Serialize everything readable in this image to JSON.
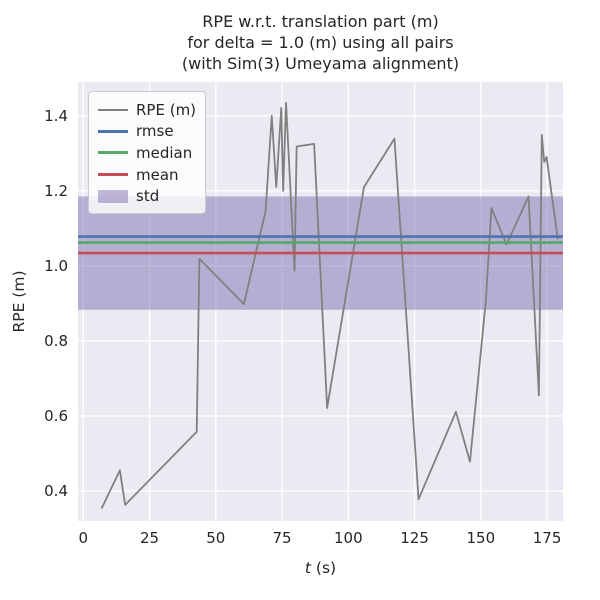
{
  "title": {
    "line1": "RPE w.r.t. translation part (m)",
    "line2": "for delta = 1.0 (m) using all pairs",
    "line3": "(with Sim(3) Umeyama alignment)"
  },
  "axes": {
    "xlabel_italic": "t",
    "xlabel_rest": " (s)",
    "ylabel": "RPE (m)"
  },
  "legend": {
    "items": [
      {
        "label": "RPE (m)",
        "kind": "line",
        "color": "#808080",
        "weight": 2.2
      },
      {
        "label": "rmse",
        "kind": "line",
        "color": "#4C72B0",
        "weight": 3
      },
      {
        "label": "median",
        "kind": "line",
        "color": "#55A868",
        "weight": 3
      },
      {
        "label": "mean",
        "kind": "line",
        "color": "#C44E52",
        "weight": 3
      },
      {
        "label": "std",
        "kind": "patch",
        "color": "rgba(129,114,178,0.5)"
      }
    ]
  },
  "colors": {
    "axes_background": "#EAEAF2",
    "grid": "#FFFFFF",
    "rpe_line": "#808080",
    "rmse_line": "#4C72B0",
    "median_line": "#55A868",
    "mean_line": "#C44E52",
    "std_band": "#8172B2",
    "text": "#262626"
  },
  "chart_data": {
    "type": "line",
    "title": "RPE w.r.t. translation part (m) for delta = 1.0 (m) using all pairs (with Sim(3) Umeyama alignment)",
    "xlabel": "t (s)",
    "ylabel": "RPE (m)",
    "xlim": [
      -2.0,
      181.0
    ],
    "ylim": [
      0.32,
      1.49
    ],
    "xticks": [
      0,
      25,
      50,
      75,
      100,
      125,
      150,
      175
    ],
    "yticks": [
      0.4,
      0.6,
      0.8,
      1.0,
      1.2,
      1.4
    ],
    "grid": true,
    "legend_position": "upper left",
    "series": [
      {
        "name": "RPE (m)",
        "kind": "line",
        "color": "#808080",
        "points": [
          [
            7.0,
            0.355
          ],
          [
            13.8,
            0.455
          ],
          [
            15.8,
            0.363
          ],
          [
            42.8,
            0.558
          ],
          [
            43.8,
            1.019
          ],
          [
            60.6,
            0.898
          ],
          [
            68.8,
            1.147
          ],
          [
            71.1,
            1.4
          ],
          [
            72.8,
            1.21
          ],
          [
            74.7,
            1.421
          ],
          [
            75.4,
            1.2
          ],
          [
            76.5,
            1.434
          ],
          [
            79.7,
            0.987
          ],
          [
            80.5,
            1.318
          ],
          [
            87.1,
            1.325
          ],
          [
            92.0,
            0.621
          ],
          [
            105.9,
            1.21
          ],
          [
            117.4,
            1.339
          ],
          [
            126.5,
            0.378
          ],
          [
            140.6,
            0.611
          ],
          [
            145.9,
            0.478
          ],
          [
            151.9,
            0.907
          ],
          [
            154.0,
            1.154
          ],
          [
            159.7,
            1.057
          ],
          [
            168.0,
            1.185
          ],
          [
            171.9,
            0.655
          ],
          [
            173.0,
            1.349
          ],
          [
            173.9,
            1.277
          ],
          [
            174.8,
            1.29
          ],
          [
            179.0,
            1.073
          ]
        ]
      },
      {
        "name": "rmse",
        "kind": "hline",
        "color": "#4C72B0",
        "value": 1.078
      },
      {
        "name": "median",
        "kind": "hline",
        "color": "#55A868",
        "value": 1.062
      },
      {
        "name": "mean",
        "kind": "hline",
        "color": "#C44E52",
        "value": 1.034
      },
      {
        "name": "std",
        "kind": "band",
        "color": "#8172B2",
        "opacity": 0.5,
        "range": [
          0.883,
          1.185
        ]
      }
    ]
  }
}
